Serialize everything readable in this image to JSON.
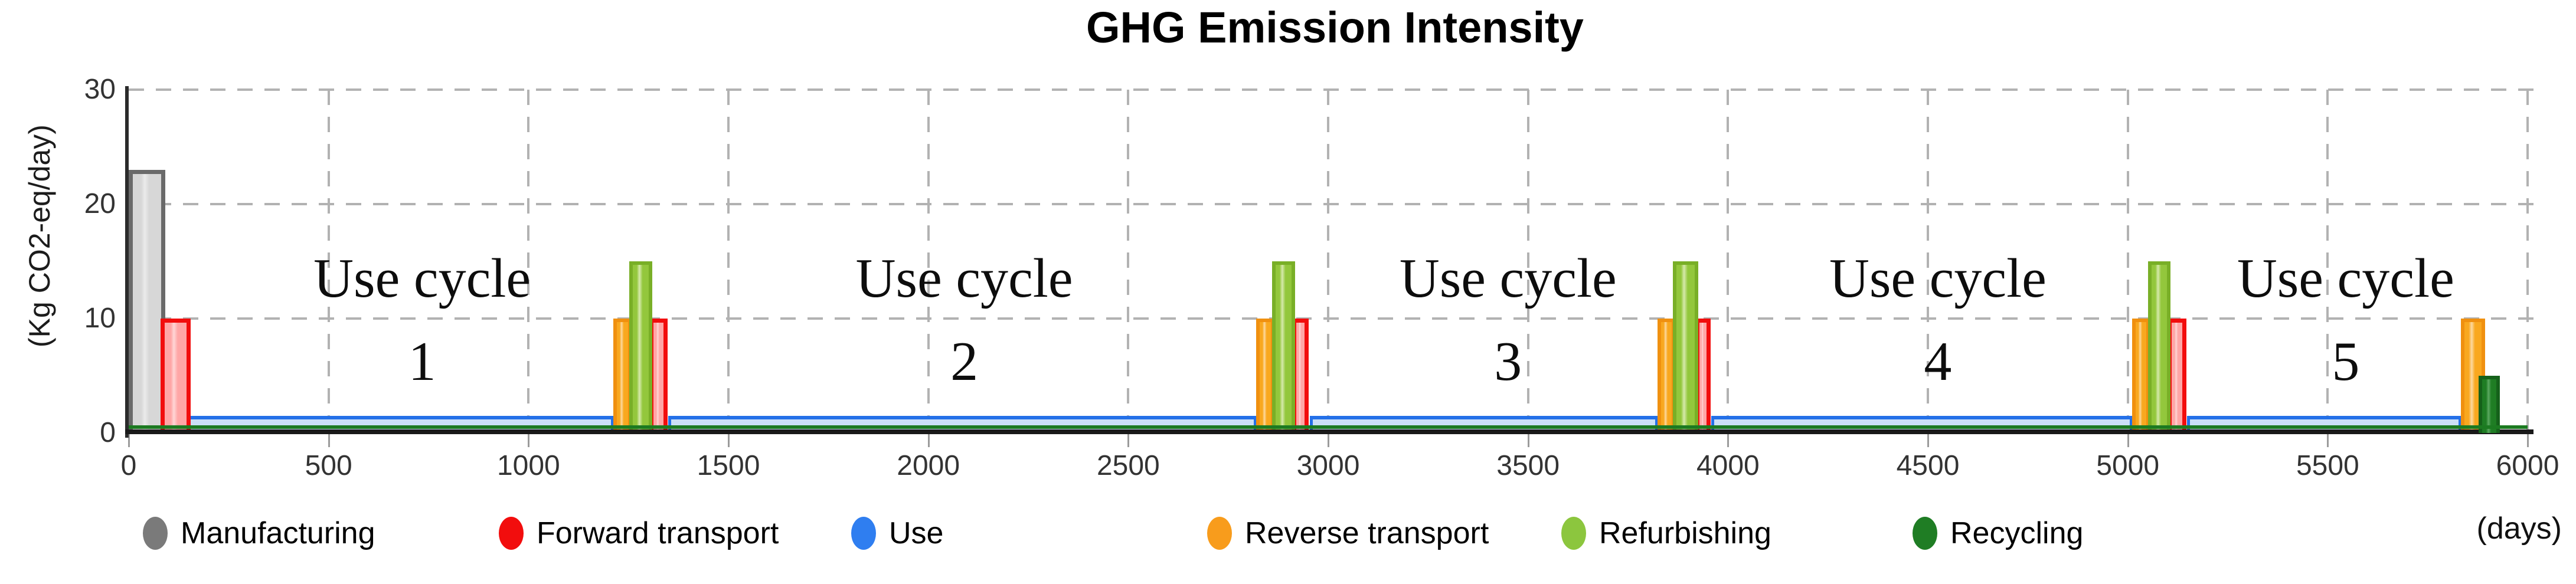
{
  "title": "GHG Emission Intensity",
  "axes": {
    "y_label": "(Kg CO2-eq/day)",
    "x_unit_label": "(days)",
    "y_ticks": [
      0,
      10,
      20,
      30
    ],
    "x_ticks": [
      0,
      500,
      1000,
      1500,
      2000,
      2500,
      3000,
      3500,
      4000,
      4500,
      5000,
      5500,
      6000
    ]
  },
  "legend": [
    {
      "key": "mfg",
      "label": "Manufacturing",
      "color": "#7a7a7a",
      "x": 242
    },
    {
      "key": "fwd",
      "label": "Forward transport",
      "color": "#f20d0d",
      "x": 845
    },
    {
      "key": "use",
      "label": "Use",
      "color": "#2f7ef0",
      "x": 1442
    },
    {
      "key": "rev",
      "label": "Reverse transport",
      "color": "#f89c1c",
      "x": 2045
    },
    {
      "key": "ref",
      "label": "Refurbishing",
      "color": "#8cc63e",
      "x": 2645
    },
    {
      "key": "rec",
      "label": "Recycling",
      "color": "#1f7d24",
      "x": 3240
    }
  ],
  "chart_data": {
    "type": "bar",
    "title": "GHG Emission Intensity",
    "xlabel": "(days)",
    "ylabel": "(Kg CO2-eq/day)",
    "xlim": [
      0,
      6000
    ],
    "ylim": [
      0,
      30
    ],
    "grid": "dashed, vertical every 500 days, horizontal every 10 units",
    "legend_position": "bottom",
    "series": [
      {
        "key": "mfg",
        "name": "Manufacturing",
        "stroke": "#6a6a6a",
        "fill": "#d7d7d7",
        "intervals": [
          {
            "start": 0,
            "end": 92,
            "value": 23
          }
        ]
      },
      {
        "key": "fwd",
        "name": "Forward transport",
        "stroke": "#f20d0d",
        "fill": "#ffa6a6",
        "intervals": [
          {
            "start": 80,
            "end": 155,
            "value": 10
          },
          {
            "start": 1302,
            "end": 1348,
            "value": 10
          },
          {
            "start": 2910,
            "end": 2952,
            "value": 10
          },
          {
            "start": 3918,
            "end": 3956,
            "value": 10
          },
          {
            "start": 5100,
            "end": 5146,
            "value": 10
          }
        ]
      },
      {
        "key": "use",
        "name": "Use",
        "stroke": "#2470e8",
        "fill": "#cbdff7",
        "intervals": [
          {
            "start": 143,
            "end": 1214,
            "value": 1.5
          },
          {
            "start": 1350,
            "end": 2822,
            "value": 1.5
          },
          {
            "start": 2954,
            "end": 3826,
            "value": 1.5
          },
          {
            "start": 3958,
            "end": 5013,
            "value": 1.5
          },
          {
            "start": 5148,
            "end": 5835,
            "value": 1.5
          }
        ]
      },
      {
        "key": "rev",
        "name": "Reverse transport",
        "stroke": "#f0900f",
        "fill": "#f9a81f",
        "intervals": [
          {
            "start": 1212,
            "end": 1258,
            "value": 10
          },
          {
            "start": 2820,
            "end": 2866,
            "value": 10
          },
          {
            "start": 3824,
            "end": 3868,
            "value": 10
          },
          {
            "start": 5011,
            "end": 5055,
            "value": 10
          },
          {
            "start": 5833,
            "end": 5894,
            "value": 10
          }
        ]
      },
      {
        "key": "ref",
        "name": "Refurbishing",
        "stroke": "#79af27",
        "fill": "#93c73c",
        "intervals": [
          {
            "start": 1252,
            "end": 1310,
            "value": 15
          },
          {
            "start": 2860,
            "end": 2918,
            "value": 15
          },
          {
            "start": 3862,
            "end": 3926,
            "value": 15
          },
          {
            "start": 5050,
            "end": 5107,
            "value": 15
          }
        ]
      },
      {
        "key": "rec",
        "name": "Recycling",
        "stroke": "#15611a",
        "fill": "#1f7d24",
        "baseline": {
          "start": 0,
          "end": 6000
        },
        "intervals": [
          {
            "start": 5877,
            "end": 5931,
            "value": 5
          }
        ]
      }
    ],
    "annotations": [
      {
        "label": "Use cycle",
        "number": "1",
        "x_day": 734
      },
      {
        "label": "Use cycle",
        "number": "2",
        "x_day": 2090
      },
      {
        "label": "Use cycle",
        "number": "3",
        "x_day": 3450
      },
      {
        "label": "Use cycle",
        "number": "4",
        "x_day": 4525
      },
      {
        "label": "Use cycle",
        "number": "5",
        "x_day": 5545
      }
    ]
  }
}
